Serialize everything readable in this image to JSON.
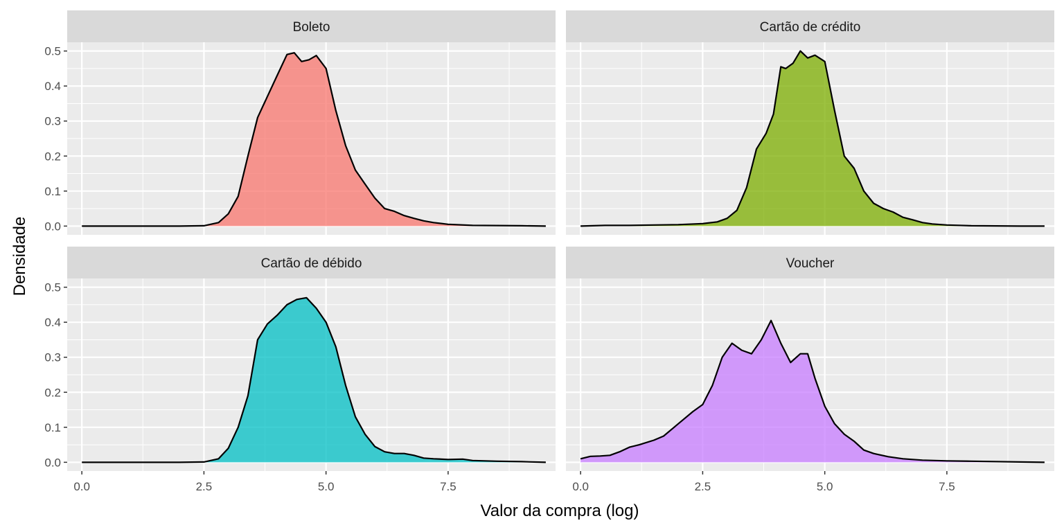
{
  "chart_data": {
    "type": "area",
    "facet_layout": "2x2",
    "xlabel": "Valor da compra (log)",
    "ylabel": "Densidade",
    "xlim": [
      -0.3,
      9.7
    ],
    "ylim": [
      -0.025,
      0.525
    ],
    "x_ticks": [
      0,
      2.5,
      5,
      7.5
    ],
    "x_tick_labels": [
      "0.0",
      "2.5",
      "5.0",
      "7.5"
    ],
    "y_ticks": [
      0,
      0.1,
      0.2,
      0.3,
      0.4,
      0.5
    ],
    "y_tick_labels": [
      "0.0",
      "0.1",
      "0.2",
      "0.3",
      "0.4",
      "0.5"
    ],
    "grid": true,
    "legend": "none",
    "panel_background": "#ebebeb",
    "strip_background": "#d9d9d9",
    "outline_color": "#000000",
    "panels": [
      {
        "title": "Boleto",
        "fill": "#f8766d",
        "x": [
          0,
          1,
          2,
          2.5,
          2.8,
          3,
          3.2,
          3.4,
          3.6,
          3.8,
          4,
          4.2,
          4.35,
          4.5,
          4.65,
          4.8,
          5,
          5.2,
          5.4,
          5.6,
          5.8,
          6,
          6.2,
          6.4,
          6.6,
          6.8,
          7,
          7.2,
          7.5,
          8,
          9,
          9.5
        ],
        "y": [
          0,
          0,
          0,
          0.001,
          0.01,
          0.035,
          0.085,
          0.2,
          0.31,
          0.37,
          0.43,
          0.49,
          0.495,
          0.47,
          0.475,
          0.487,
          0.45,
          0.33,
          0.23,
          0.16,
          0.12,
          0.08,
          0.05,
          0.042,
          0.03,
          0.022,
          0.015,
          0.01,
          0.005,
          0.002,
          0.001,
          0
        ]
      },
      {
        "title": "Cartão de crédito",
        "fill": "#7cae00",
        "x": [
          0,
          0.5,
          1,
          1.5,
          2,
          2.5,
          2.8,
          3,
          3.2,
          3.4,
          3.6,
          3.8,
          3.95,
          4.1,
          4.2,
          4.35,
          4.5,
          4.65,
          4.8,
          5,
          5.2,
          5.4,
          5.6,
          5.8,
          6,
          6.2,
          6.4,
          6.6,
          6.8,
          7,
          7.2,
          7.5,
          8,
          9,
          9.5
        ],
        "y": [
          0,
          0.002,
          0.002,
          0.003,
          0.004,
          0.007,
          0.012,
          0.022,
          0.045,
          0.11,
          0.22,
          0.265,
          0.32,
          0.455,
          0.45,
          0.465,
          0.5,
          0.48,
          0.488,
          0.47,
          0.33,
          0.2,
          0.165,
          0.1,
          0.065,
          0.05,
          0.04,
          0.025,
          0.018,
          0.01,
          0.006,
          0.003,
          0.001,
          0,
          0
        ]
      },
      {
        "title": "Cartão de débido",
        "fill": "#00bfc4",
        "x": [
          0,
          1,
          2,
          2.5,
          2.8,
          3,
          3.2,
          3.4,
          3.6,
          3.8,
          4,
          4.2,
          4.4,
          4.6,
          4.8,
          5,
          5.2,
          5.4,
          5.6,
          5.8,
          6,
          6.2,
          6.4,
          6.6,
          6.8,
          7,
          7.2,
          7.5,
          7.8,
          8,
          8.5,
          9,
          9.5
        ],
        "y": [
          0,
          0,
          0,
          0.001,
          0.01,
          0.04,
          0.1,
          0.19,
          0.35,
          0.395,
          0.42,
          0.45,
          0.465,
          0.47,
          0.44,
          0.4,
          0.33,
          0.22,
          0.13,
          0.08,
          0.045,
          0.03,
          0.025,
          0.025,
          0.02,
          0.012,
          0.01,
          0.008,
          0.009,
          0.005,
          0.003,
          0.002,
          0
        ]
      },
      {
        "title": "Voucher",
        "fill": "#c77cff",
        "x": [
          0,
          0.2,
          0.4,
          0.6,
          0.8,
          1,
          1.2,
          1.5,
          1.7,
          2,
          2.3,
          2.5,
          2.7,
          2.9,
          3.1,
          3.3,
          3.5,
          3.7,
          3.9,
          4.1,
          4.3,
          4.5,
          4.65,
          4.8,
          5,
          5.2,
          5.4,
          5.6,
          5.8,
          6,
          6.3,
          6.6,
          7,
          7.5,
          8,
          9,
          9.5
        ],
        "y": [
          0.01,
          0.017,
          0.018,
          0.02,
          0.03,
          0.043,
          0.05,
          0.063,
          0.075,
          0.11,
          0.145,
          0.165,
          0.22,
          0.3,
          0.34,
          0.32,
          0.31,
          0.35,
          0.405,
          0.34,
          0.285,
          0.31,
          0.31,
          0.24,
          0.16,
          0.11,
          0.08,
          0.06,
          0.035,
          0.025,
          0.016,
          0.01,
          0.006,
          0.004,
          0.003,
          0.001,
          0
        ]
      }
    ]
  }
}
